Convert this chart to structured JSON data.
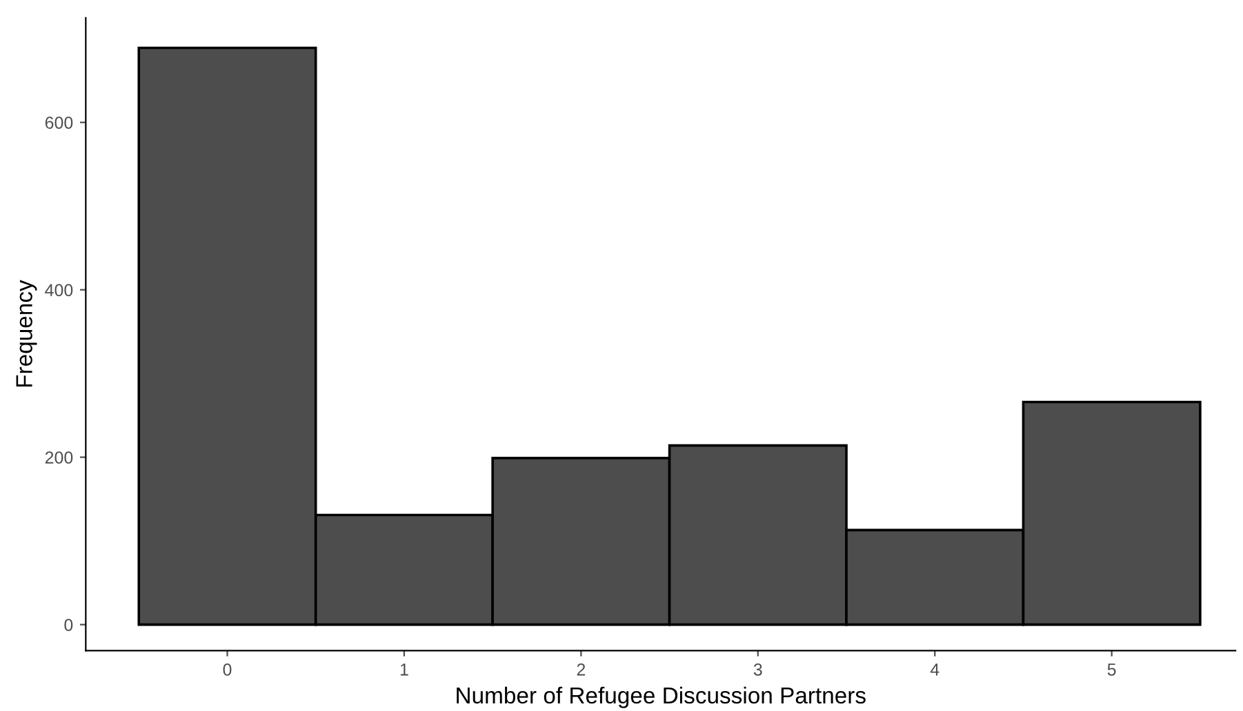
{
  "chart_data": {
    "type": "histogram",
    "xlabel": "Number of Refugee Discussion Partners",
    "ylabel": "Frequency",
    "bins": [
      -0.5,
      0.5,
      1.5,
      2.5,
      3.5,
      4.5,
      5.5
    ],
    "values": [
      689,
      131,
      199,
      214,
      113,
      266
    ],
    "color": "#4d4d4d",
    "xlim": [
      -0.8,
      5.7
    ],
    "ylim": [
      -31,
      725
    ],
    "xticks": [
      0,
      1,
      2,
      3,
      4,
      5
    ],
    "yticks": [
      0,
      200,
      400,
      600
    ],
    "grid": false,
    "legend": false
  }
}
